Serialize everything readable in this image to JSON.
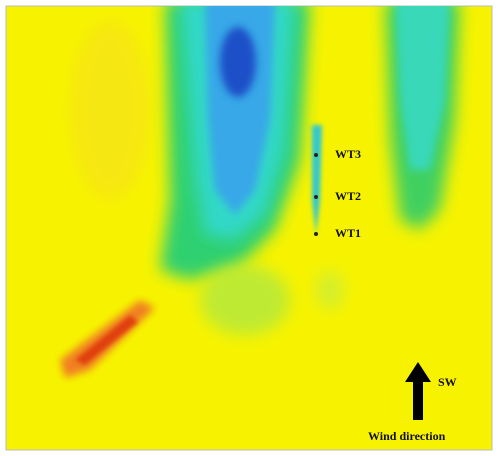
{
  "labels": {
    "turbines": [
      "WT3",
      "WT2",
      "WT1"
    ],
    "direction": "SW",
    "caption": "Wind direction"
  }
}
